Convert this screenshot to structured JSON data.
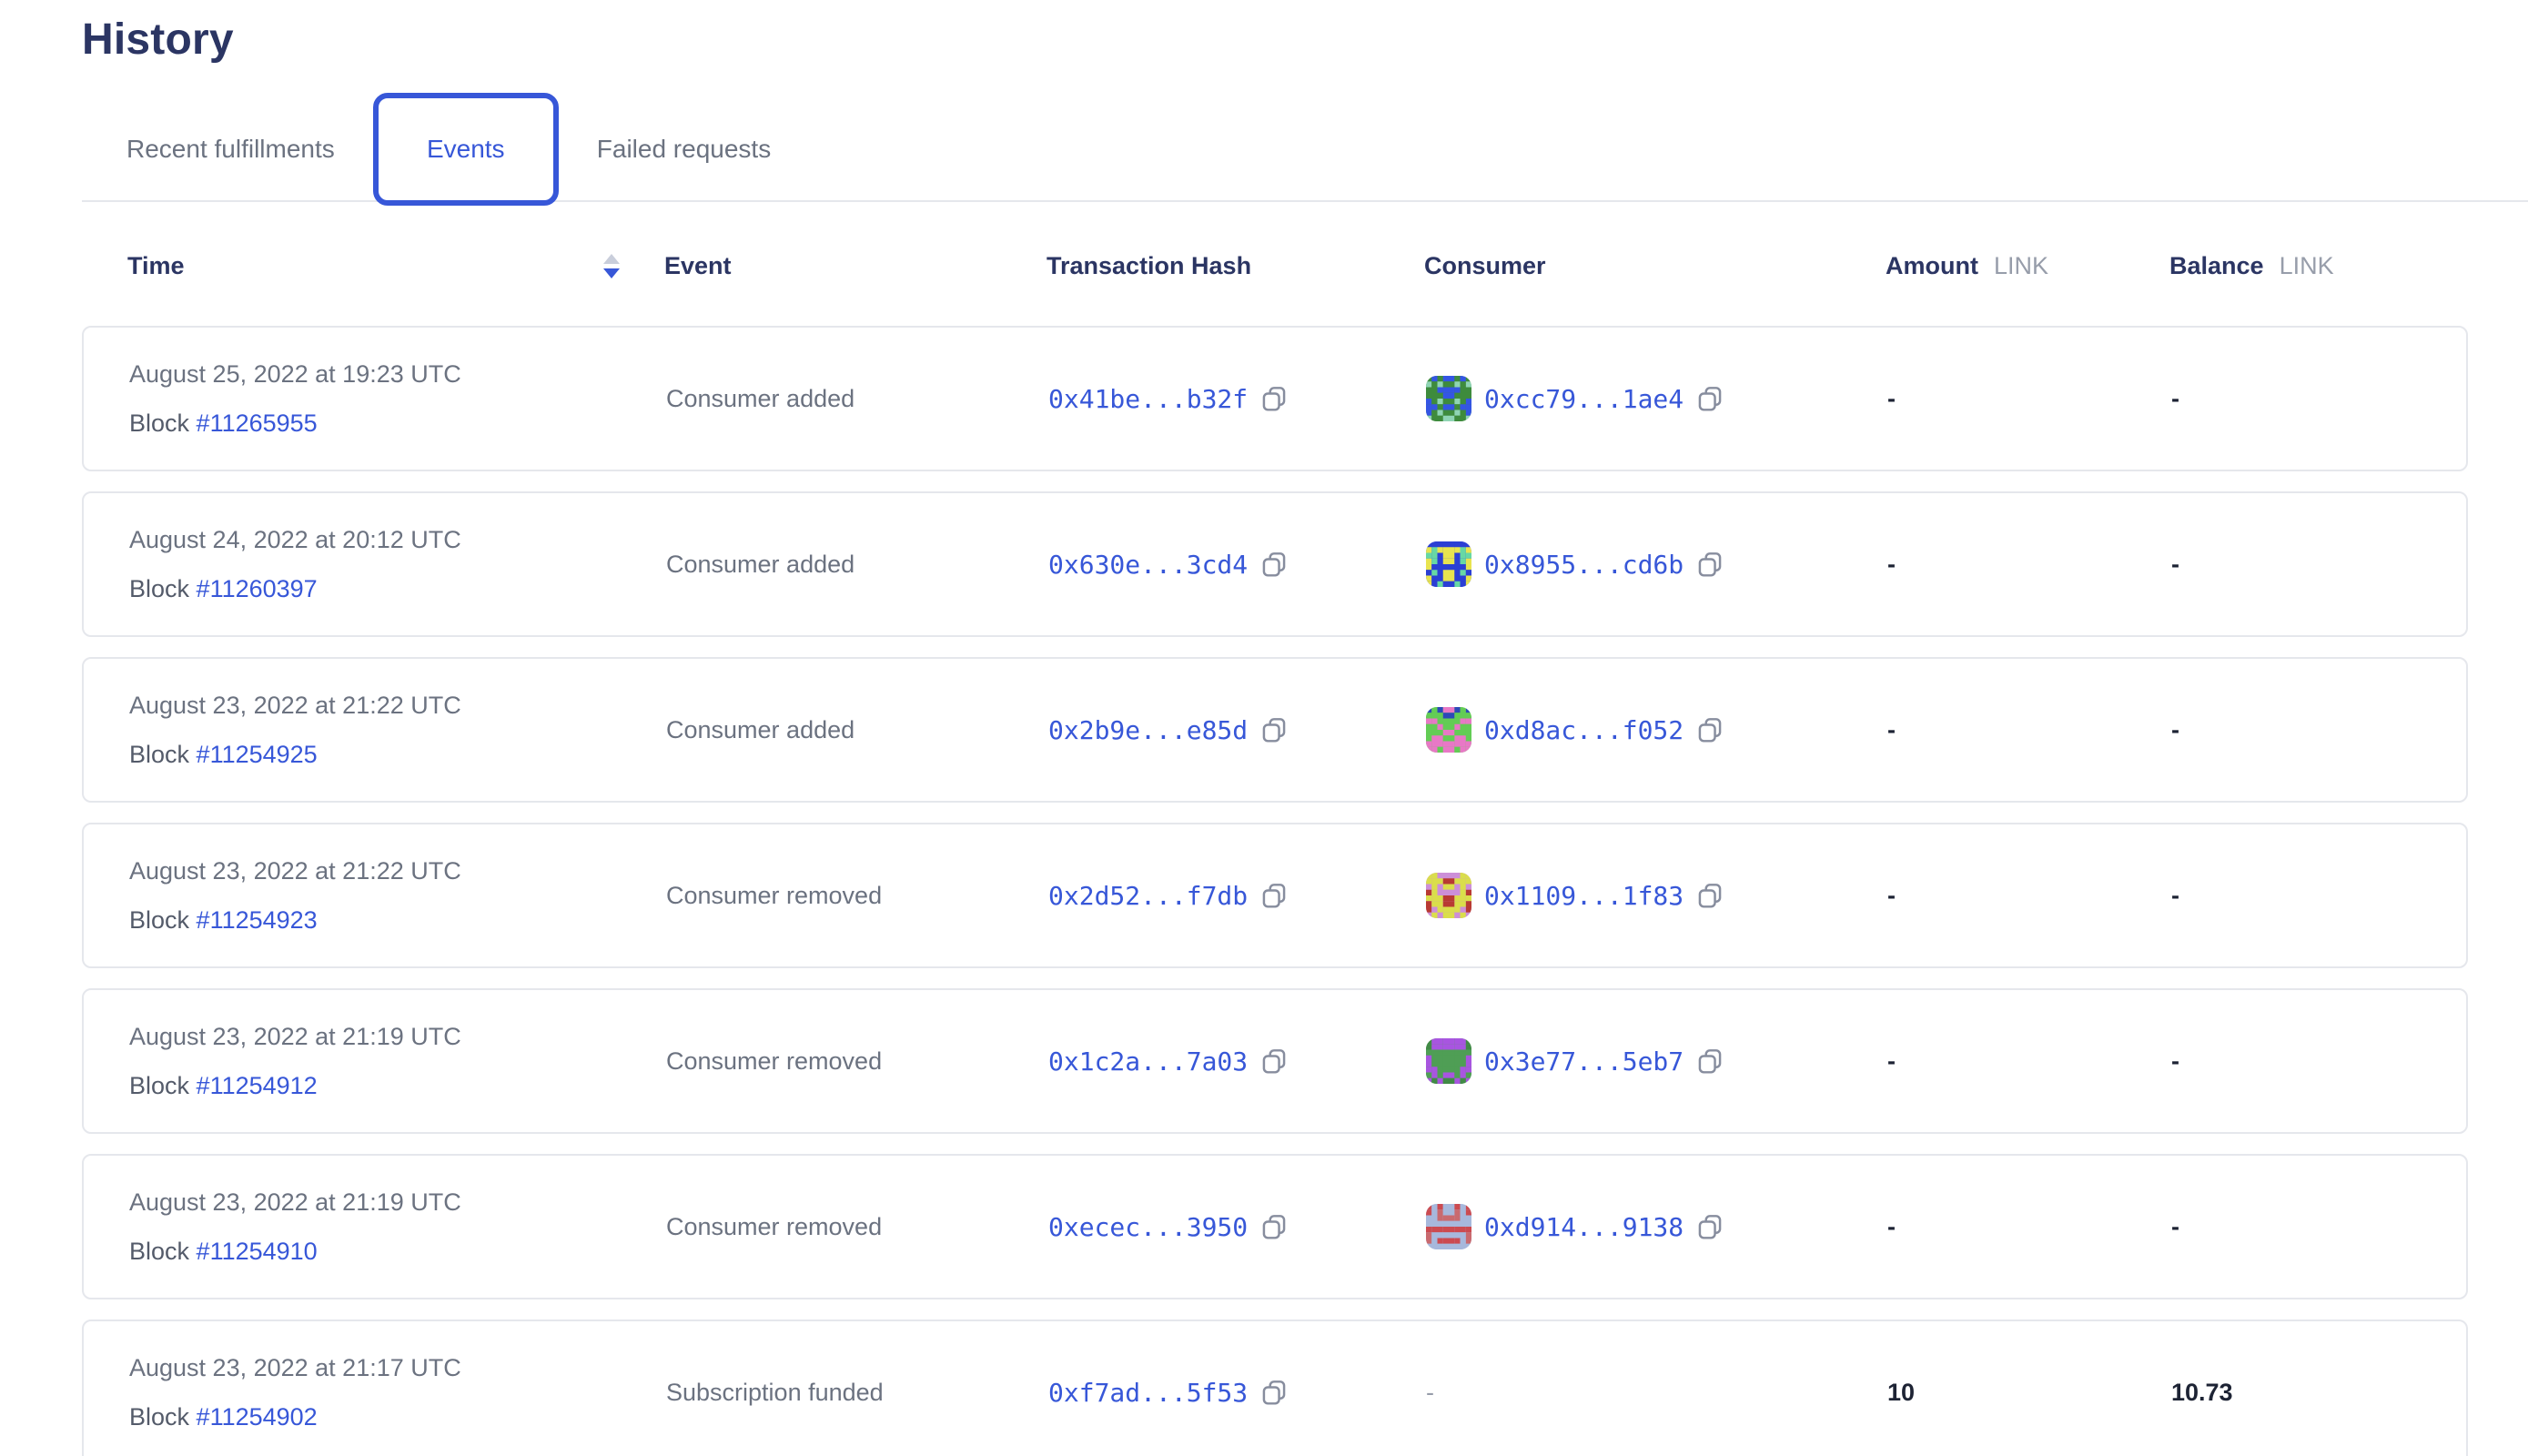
{
  "colors": {
    "navy": "#2b3563",
    "accent": "#3757d8",
    "gray-text": "#6b7280",
    "gray-dark": "#545b6a",
    "border": "#e5e7ec",
    "icon-gray": "#878d9e",
    "value-dark": "#1d2334",
    "link-suffix": "#979daa",
    "sort-inactive": "#c9cedb"
  },
  "page": {
    "title": "History"
  },
  "tabs": [
    {
      "label": "Recent fulfillments",
      "active": false
    },
    {
      "label": "Events",
      "active": true
    },
    {
      "label": "Failed requests",
      "active": false
    }
  ],
  "table": {
    "columns": {
      "time": "Time",
      "event": "Event",
      "hash": "Transaction Hash",
      "consumer": "Consumer",
      "amount": "Amount",
      "balance": "Balance",
      "unit": "LINK"
    },
    "block_label": "Block",
    "sort": {
      "column": "time",
      "direction": "desc"
    },
    "rows": [
      {
        "date": "August 25, 2022 at 19:23 UTC",
        "block": "#11265955",
        "event": "Consumer added",
        "tx_hash": "0x41be...b32f",
        "consumer": "0xcc79...1ae4",
        "avatar": {
          "bg": "#3e8b3d",
          "fg": "#3455e4",
          "spot": "#8fd4b4"
        },
        "amount": "-",
        "balance": "-"
      },
      {
        "date": "August 24, 2022 at 20:12 UTC",
        "block": "#11260397",
        "event": "Consumer added",
        "tx_hash": "0x630e...3cd4",
        "consumer": "0x8955...cd6b",
        "avatar": {
          "bg": "#2b3fd4",
          "fg": "#e8e44f",
          "spot": "#67d8a4"
        },
        "amount": "-",
        "balance": "-"
      },
      {
        "date": "August 23, 2022 at 21:22 UTC",
        "block": "#11254925",
        "event": "Consumer added",
        "tx_hash": "0x2b9e...e85d",
        "consumer": "0xd8ac...f052",
        "avatar": {
          "bg": "#63cc55",
          "fg": "#e878c6",
          "spot": "#2b49b8"
        },
        "amount": "-",
        "balance": "-"
      },
      {
        "date": "August 23, 2022 at 21:22 UTC",
        "block": "#11254923",
        "event": "Consumer removed",
        "tx_hash": "0x2d52...f7db",
        "consumer": "0x1109...1f83",
        "avatar": {
          "bg": "#cc8fd8",
          "fg": "#dade4b",
          "spot": "#b83a33"
        },
        "amount": "-",
        "balance": "-"
      },
      {
        "date": "August 23, 2022 at 21:19 UTC",
        "block": "#11254912",
        "event": "Consumer removed",
        "tx_hash": "0x1c2a...7a03",
        "consumer": "0x3e77...5eb7",
        "avatar": {
          "bg": "#4f9e55",
          "fg": "#a855e0",
          "spot": "#418a46"
        },
        "amount": "-",
        "balance": "-"
      },
      {
        "date": "August 23, 2022 at 21:19 UTC",
        "block": "#11254910",
        "event": "Consumer removed",
        "tx_hash": "0xecec...3950",
        "consumer": "0xd914...9138",
        "avatar": {
          "bg": "#a7b8dc",
          "fg": "#cc4a50",
          "spot": "#c96a6f"
        },
        "amount": "-",
        "balance": "-"
      },
      {
        "date": "August 23, 2022 at 21:17 UTC",
        "block": "#11254902",
        "event": "Subscription funded",
        "tx_hash": "0xf7ad...5f53",
        "consumer": null,
        "consumer_dash": "-",
        "avatar": null,
        "amount": "10",
        "balance": "10.73"
      }
    ]
  }
}
